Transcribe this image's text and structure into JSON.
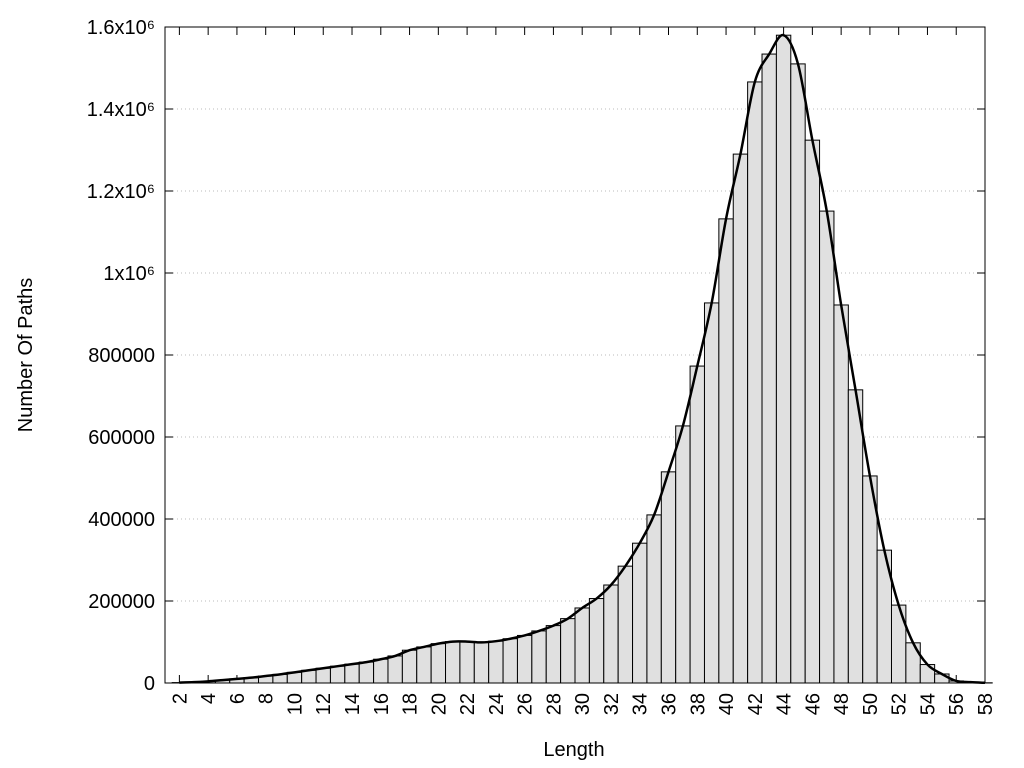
{
  "chart_data": {
    "type": "histogram",
    "x_label": "Length",
    "y_label": "Number Of Paths",
    "x": [
      2,
      3,
      4,
      5,
      6,
      7,
      8,
      9,
      10,
      11,
      12,
      13,
      14,
      15,
      16,
      17,
      18,
      19,
      20,
      21,
      22,
      23,
      24,
      25,
      26,
      27,
      28,
      29,
      30,
      31,
      32,
      33,
      34,
      35,
      36,
      37,
      38,
      39,
      40,
      41,
      42,
      43,
      44,
      45,
      46,
      47,
      48,
      49,
      50,
      51,
      52,
      53,
      54,
      55,
      56,
      57,
      58
    ],
    "values": [
      1000,
      2000,
      4000,
      7000,
      10000,
      13000,
      17000,
      21000,
      26000,
      31000,
      36000,
      41000,
      46000,
      51000,
      58000,
      66000,
      80000,
      88000,
      96000,
      101000,
      101000,
      99000,
      102000,
      108000,
      116000,
      127000,
      140000,
      157000,
      183000,
      206000,
      239000,
      285000,
      341000,
      410000,
      515000,
      627000,
      773000,
      927000,
      1132000,
      1290000,
      1466000,
      1534000,
      1580000,
      1510000,
      1324000,
      1151000,
      922000,
      715000,
      505000,
      324000,
      190000,
      98000,
      45000,
      22000,
      5000,
      2000,
      500
    ],
    "color": "#e0e0e0",
    "edge_color": "#000000",
    "smooth_line": true,
    "line_color": "#000000",
    "xlim": [
      1,
      58
    ],
    "xticks": [
      2,
      4,
      6,
      8,
      10,
      12,
      14,
      16,
      18,
      20,
      22,
      24,
      26,
      28,
      30,
      32,
      34,
      36,
      38,
      40,
      42,
      44,
      46,
      48,
      50,
      52,
      54,
      56,
      58
    ],
    "ylim": [
      0,
      1600000
    ],
    "yticks": [
      0,
      200000,
      400000,
      600000,
      800000,
      {
        "value": 1000000,
        "label": "1x10⁶"
      },
      {
        "value": 1200000,
        "label": "1.2x10⁶"
      },
      {
        "value": 1400000,
        "label": "1.4x10⁶"
      },
      {
        "value": 1600000,
        "label": "1.6x10⁶"
      }
    ],
    "grid": true
  }
}
